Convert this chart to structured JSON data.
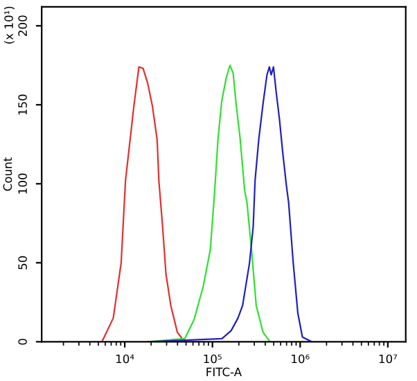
{
  "chart_data": {
    "type": "line",
    "xlabel": "FITC-A",
    "ylabel": "Count",
    "annotations": [
      "(x 10¹)"
    ],
    "log": "x",
    "grid": false,
    "legend": false,
    "marker": "none",
    "line_style": "solid",
    "xlim": [
      1130,
      16000000
    ],
    "xticks": [
      {
        "value": 10000,
        "label": "10⁴"
      },
      {
        "value": 100000,
        "label": "10⁵"
      },
      {
        "value": 1000000,
        "label": "10⁶"
      },
      {
        "value": 10000000,
        "label": "10⁷"
      }
    ],
    "ylim": [
      0,
      212
    ],
    "yticks": [
      0,
      50,
      100,
      150,
      200
    ],
    "series": [
      {
        "color": "#e03030",
        "x": [
          5500,
          7400,
          9100,
          10200,
          12700,
          14500,
          16200,
          18200,
          20700,
          23400,
          24500,
          27000,
          29500,
          33500,
          39800,
          47900
        ],
        "values": [
          0,
          15,
          50,
          102,
          149,
          174,
          173,
          164,
          149,
          128,
          102,
          73,
          43,
          23,
          6,
          0
        ]
      },
      {
        "color": "#30e030",
        "x": [
          18400,
          48400,
          61700,
          78500,
          94400,
          103700,
          106200,
          115600,
          127400,
          143500,
          158500,
          172200,
          187500,
          206500,
          232800,
          247700,
          279300,
          315500,
          377600,
          452900
        ],
        "values": [
          0,
          2,
          14,
          35,
          58,
          88,
          96,
          128,
          152,
          167,
          175,
          170,
          149,
          129,
          96,
          88,
          58,
          23,
          6,
          0
        ]
      },
      {
        "color": "#2020c0",
        "x": [
          18500,
          48800,
          128200,
          163300,
          195400,
          220800,
          264900,
          291700,
          306200,
          337300,
          380200,
          418800,
          445700,
          467700,
          496600,
          533300,
          580800,
          632400,
          696600,
          739600,
          833700,
          941900,
          1061000,
          1352000
        ],
        "values": [
          0,
          1,
          2,
          7,
          15,
          23,
          50,
          73,
          102,
          128,
          152,
          169,
          174,
          169,
          174,
          158,
          141,
          120,
          99,
          88,
          50,
          18,
          3,
          0
        ]
      }
    ]
  }
}
